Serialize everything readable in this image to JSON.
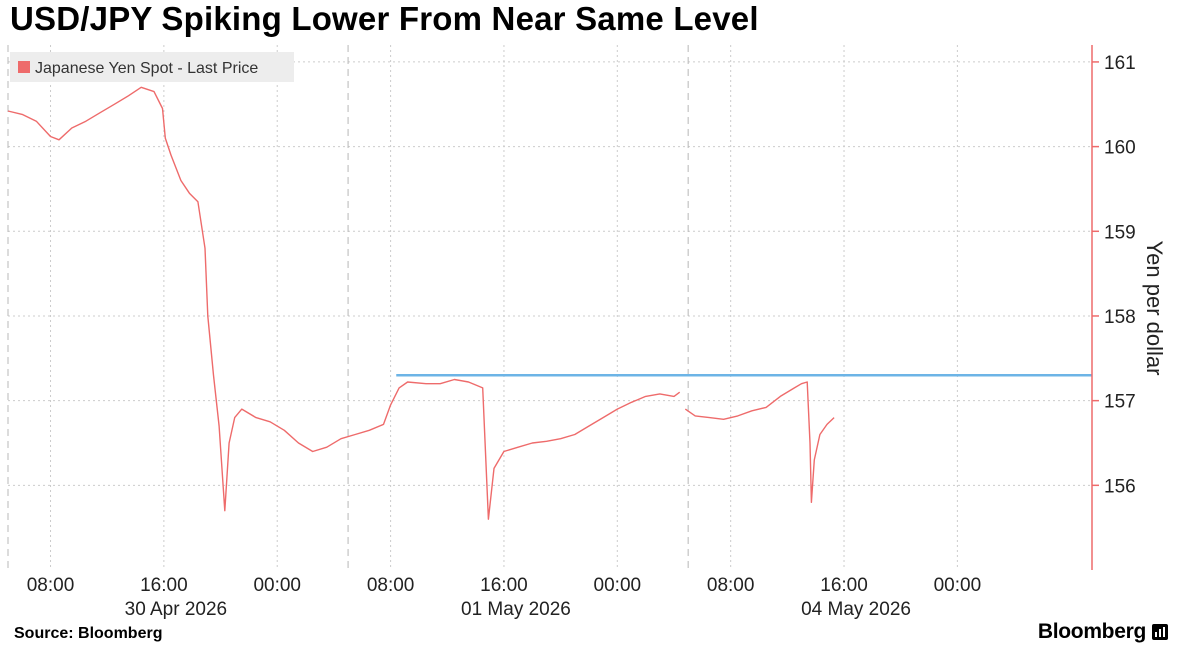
{
  "title": "USD/JPY Spiking Lower From Near Same Level",
  "source": "Source: Bloomberg",
  "brand": "Bloomberg",
  "chart_data": {
    "type": "line",
    "legend": "Japanese Yen Spot - Last Price",
    "legend_position": "top-left",
    "ylabel": "Yen per dollar",
    "ylim": [
      155,
      161.2
    ],
    "yticks": [
      156,
      157,
      158,
      159,
      160,
      161
    ],
    "grid": true,
    "colors": {
      "series": "#ee6b6b",
      "reference": "#6cb4e6",
      "axis": "#ee6b6b",
      "grid": "#cccccc"
    },
    "x_tick_labels": [
      "08:00",
      "16:00",
      "00:00",
      "08:00",
      "16:00",
      "00:00",
      "08:00",
      "16:00",
      "00:00"
    ],
    "x_tick_hours": [
      8,
      16,
      24,
      32,
      40,
      48,
      56,
      64,
      72
    ],
    "x_date_labels": [
      {
        "label": "30 Apr 2026",
        "hour": 16
      },
      {
        "label": "01 May 2026",
        "hour": 40
      },
      {
        "label": "04 May 2026",
        "hour": 64
      }
    ],
    "session_breaks_hours": [
      5,
      29,
      53
    ],
    "xlim_hours": [
      5,
      81.5
    ],
    "reference_line": {
      "value": 157.3,
      "from_hour": 32.4,
      "to_hour": 81.5
    },
    "series": [
      {
        "segments": [
          [
            [
              5,
              160.42
            ],
            [
              6,
              160.38
            ],
            [
              7,
              160.3
            ],
            [
              8,
              160.12
            ],
            [
              8.6,
              160.08
            ],
            [
              9.5,
              160.22
            ],
            [
              10.5,
              160.3
            ],
            [
              11.5,
              160.4
            ],
            [
              12.5,
              160.5
            ],
            [
              13.5,
              160.6
            ],
            [
              14.4,
              160.7
            ],
            [
              15.3,
              160.65
            ],
            [
              15.9,
              160.45
            ],
            [
              16.1,
              160.1
            ],
            [
              16.5,
              159.9
            ],
            [
              17.2,
              159.6
            ],
            [
              17.8,
              159.45
            ],
            [
              18.4,
              159.35
            ],
            [
              18.9,
              158.8
            ],
            [
              19.1,
              158.0
            ],
            [
              19.5,
              157.3
            ],
            [
              19.9,
              156.7
            ],
            [
              20.3,
              155.7
            ],
            [
              20.6,
              156.5
            ],
            [
              21.0,
              156.8
            ],
            [
              21.5,
              156.9
            ],
            [
              22.5,
              156.8
            ],
            [
              23.5,
              156.75
            ],
            [
              24.5,
              156.65
            ],
            [
              25.5,
              156.5
            ],
            [
              26.5,
              156.4
            ],
            [
              27.5,
              156.45
            ],
            [
              28.5,
              156.55
            ],
            [
              29.5,
              156.6
            ],
            [
              30.5,
              156.65
            ],
            [
              31.5,
              156.72
            ],
            [
              32.0,
              156.95
            ],
            [
              32.6,
              157.15
            ],
            [
              33.2,
              157.22
            ],
            [
              34.5,
              157.2
            ],
            [
              35.5,
              157.2
            ],
            [
              36.5,
              157.25
            ],
            [
              37.5,
              157.22
            ],
            [
              38.5,
              157.15
            ],
            [
              38.9,
              155.6
            ],
            [
              39.3,
              156.2
            ],
            [
              40,
              156.4
            ],
            [
              41,
              156.45
            ],
            [
              42,
              156.5
            ],
            [
              43,
              156.52
            ],
            [
              44,
              156.55
            ],
            [
              45,
              156.6
            ],
            [
              46,
              156.7
            ],
            [
              47,
              156.8
            ],
            [
              48,
              156.9
            ],
            [
              49,
              156.98
            ],
            [
              50,
              157.05
            ],
            [
              51,
              157.08
            ],
            [
              52,
              157.05
            ],
            [
              52.4,
              157.1
            ]
          ],
          [
            [
              52.8,
              156.9
            ],
            [
              53.5,
              156.82
            ],
            [
              54.5,
              156.8
            ],
            [
              55.5,
              156.78
            ],
            [
              56.5,
              156.82
            ],
            [
              57.5,
              156.88
            ],
            [
              58.5,
              156.92
            ],
            [
              59.5,
              157.05
            ],
            [
              60.5,
              157.15
            ],
            [
              61.0,
              157.2
            ],
            [
              61.4,
              157.22
            ],
            [
              61.6,
              156.5
            ],
            [
              61.7,
              155.8
            ],
            [
              61.9,
              156.3
            ],
            [
              62.3,
              156.6
            ],
            [
              62.8,
              156.72
            ],
            [
              63.3,
              156.8
            ]
          ]
        ]
      }
    ]
  }
}
